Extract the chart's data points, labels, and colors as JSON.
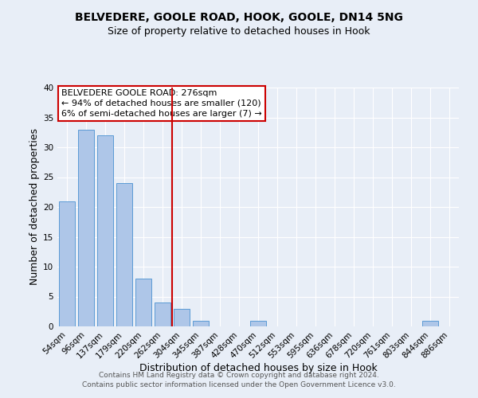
{
  "title": "BELVEDERE, GOOLE ROAD, HOOK, GOOLE, DN14 5NG",
  "subtitle": "Size of property relative to detached houses in Hook",
  "xlabel": "Distribution of detached houses by size in Hook",
  "ylabel": "Number of detached properties",
  "bar_labels": [
    "54sqm",
    "96sqm",
    "137sqm",
    "179sqm",
    "220sqm",
    "262sqm",
    "304sqm",
    "345sqm",
    "387sqm",
    "428sqm",
    "470sqm",
    "512sqm",
    "553sqm",
    "595sqm",
    "636sqm",
    "678sqm",
    "720sqm",
    "761sqm",
    "803sqm",
    "844sqm",
    "886sqm"
  ],
  "bar_values": [
    21,
    33,
    32,
    24,
    8,
    4,
    3,
    1,
    0,
    0,
    1,
    0,
    0,
    0,
    0,
    0,
    0,
    0,
    0,
    1,
    0
  ],
  "bar_color": "#aec6e8",
  "bar_edgecolor": "#5b9bd5",
  "property_line_x": 5.5,
  "property_line_color": "#cc0000",
  "ylim": [
    0,
    40
  ],
  "yticks": [
    0,
    5,
    10,
    15,
    20,
    25,
    30,
    35,
    40
  ],
  "annotation_title": "BELVEDERE GOOLE ROAD: 276sqm",
  "annotation_line1": "← 94% of detached houses are smaller (120)",
  "annotation_line2": "6% of semi-detached houses are larger (7) →",
  "annotation_box_color": "#ffffff",
  "annotation_box_edgecolor": "#cc0000",
  "footer_line1": "Contains HM Land Registry data © Crown copyright and database right 2024.",
  "footer_line2": "Contains public sector information licensed under the Open Government Licence v3.0.",
  "background_color": "#e8eef7",
  "grid_color": "#ffffff",
  "title_fontsize": 10,
  "subtitle_fontsize": 9,
  "axis_label_fontsize": 9,
  "tick_fontsize": 7.5,
  "annotation_fontsize": 8,
  "footer_fontsize": 6.5
}
